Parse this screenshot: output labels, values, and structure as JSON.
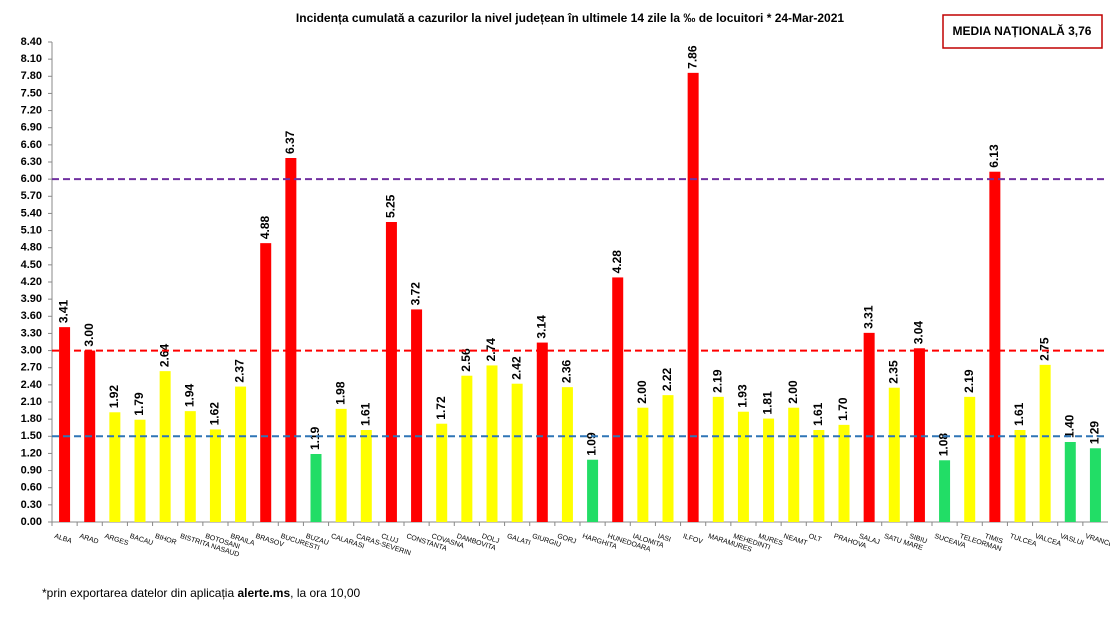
{
  "chart_data": {
    "type": "bar",
    "title": "Incidența cumulată a cazurilor la nivel județean în ultimele 14 zile la ‰ de locuitori *  24-Mar-2021",
    "annotation": "MEDIA NAȚIONALĂ 3,76",
    "footnote": [
      "*prin exportarea datelor din aplicația ",
      "alerte.ms",
      ", la ora 10,00"
    ],
    "categories": [
      "ALBA",
      "ARAD",
      "ARGES",
      "BACAU",
      "BIHOR",
      "BISTRITA NASAUD",
      "BOTOSANI",
      "BRAILA",
      "BRASOV",
      "BUCURESTI",
      "BUZAU",
      "CALARASI",
      "CARAS-SEVERIN",
      "CLUJ",
      "CONSTANTA",
      "COVASNA",
      "DAMBOVITA",
      "DOLJ",
      "GALATI",
      "GIURGIU",
      "GORJ",
      "HARGHITA",
      "HUNEDOARA",
      "IALOMITA",
      "IASI",
      "ILFOV",
      "MARAMURES",
      "MEHEDINTI",
      "MURES",
      "NEAMT",
      "OLT",
      "PRAHOVA",
      "SALAJ",
      "SATU MARE",
      "SIBIU",
      "SUCEAVA",
      "TELEORMAN",
      "TIMIS",
      "TULCEA",
      "VALCEA",
      "VASLUI",
      "VRANCEA"
    ],
    "values": [
      3.41,
      3.0,
      1.92,
      1.79,
      2.64,
      1.94,
      1.62,
      2.37,
      4.88,
      6.37,
      1.19,
      1.98,
      1.61,
      5.25,
      3.72,
      1.72,
      2.56,
      2.74,
      2.42,
      3.14,
      2.36,
      1.09,
      4.28,
      2.0,
      2.22,
      7.86,
      2.19,
      1.93,
      1.81,
      2.0,
      1.61,
      1.7,
      3.31,
      2.35,
      3.04,
      1.08,
      2.19,
      6.13,
      1.61,
      2.75,
      1.4,
      1.29
    ],
    "value_labels": [
      "3.41",
      "3.00",
      "1.92",
      "1.79",
      "2.64",
      "1.94",
      "1.62",
      "2.37",
      "4.88",
      "6.37",
      "1.19",
      "1.98",
      "1.61",
      "5.25",
      "3.72",
      "1.72",
      "2.56",
      "2.74",
      "2.42",
      "3.14",
      "2.36",
      "1.09",
      "4.28",
      "2.00",
      "2.22",
      "7.86",
      "2.19",
      "1.93",
      "1.81",
      "2.00",
      "1.61",
      "1.70",
      "3.31",
      "2.35",
      "3.04",
      "1.08",
      "2.19",
      "6.13",
      "1.61",
      "2.75",
      "1.40",
      "1.29"
    ],
    "colors": [
      "#ff0000",
      "#ff0000",
      "#ffff00",
      "#ffff00",
      "#ffff00",
      "#ffff00",
      "#ffff00",
      "#ffff00",
      "#ff0000",
      "#ff0000",
      "#22dd66",
      "#ffff00",
      "#ffff00",
      "#ff0000",
      "#ff0000",
      "#ffff00",
      "#ffff00",
      "#ffff00",
      "#ffff00",
      "#ff0000",
      "#ffff00",
      "#22dd66",
      "#ff0000",
      "#ffff00",
      "#ffff00",
      "#ff0000",
      "#ffff00",
      "#ffff00",
      "#ffff00",
      "#ffff00",
      "#ffff00",
      "#ffff00",
      "#ff0000",
      "#ffff00",
      "#ff0000",
      "#22dd66",
      "#ffff00",
      "#ff0000",
      "#ffff00",
      "#ffff00",
      "#22dd66",
      "#22dd66"
    ],
    "reference_lines": [
      {
        "value": 6,
        "color": "#7030a0"
      },
      {
        "value": 3,
        "color": "#ff0000"
      },
      {
        "value": 1.5,
        "color": "#2e75b6"
      }
    ],
    "ylim": [
      0,
      8.4
    ],
    "yticks": [
      {
        "value": 0,
        "label": "0.00"
      },
      {
        "value": 0.3,
        "label": "0.30"
      },
      {
        "value": 0.6,
        "label": "0.60"
      },
      {
        "value": 0.9,
        "label": "0.90"
      },
      {
        "value": 1.2,
        "label": "1.20"
      },
      {
        "value": 1.5,
        "label": "1.50"
      },
      {
        "value": 1.8,
        "label": "1.80"
      },
      {
        "value": 2.1,
        "label": "2.10"
      },
      {
        "value": 2.4,
        "label": "2.40"
      },
      {
        "value": 2.7,
        "label": "2.70"
      },
      {
        "value": 3,
        "label": "3.00"
      },
      {
        "value": 3.3,
        "label": "3.30"
      },
      {
        "value": 3.6,
        "label": "3.60"
      },
      {
        "value": 3.9,
        "label": "3.90"
      },
      {
        "value": 4.2,
        "label": "4.20"
      },
      {
        "value": 4.5,
        "label": "4.50"
      },
      {
        "value": 4.8,
        "label": "4.80"
      },
      {
        "value": 5.1,
        "label": "5.10"
      },
      {
        "value": 5.4,
        "label": "5.40"
      },
      {
        "value": 5.7,
        "label": "5.70"
      },
      {
        "value": 6,
        "label": "6.00"
      },
      {
        "value": 6.3,
        "label": "6.30"
      },
      {
        "value": 6.6,
        "label": "6.60"
      },
      {
        "value": 6.9,
        "label": "6.90"
      },
      {
        "value": 7.2,
        "label": "7.20"
      },
      {
        "value": 7.5,
        "label": "7.50"
      },
      {
        "value": 7.8,
        "label": "7.80"
      },
      {
        "value": 8.1,
        "label": "8.10"
      },
      {
        "value": 8.4,
        "label": "8.40"
      }
    ]
  }
}
